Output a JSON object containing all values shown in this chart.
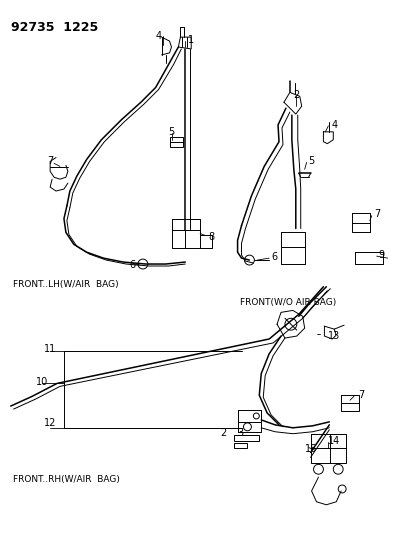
{
  "title_code": "92735  1225",
  "background_color": "#ffffff",
  "figsize": [
    4.14,
    5.33
  ],
  "dpi": 100,
  "labels": {
    "front_lh": "FRONT..LH(W/AIR  BAG)",
    "front_wo": "FRONT(W/O AIR BAG)",
    "front_rh": "FRONT..RH(W/AIR  BAG)"
  }
}
